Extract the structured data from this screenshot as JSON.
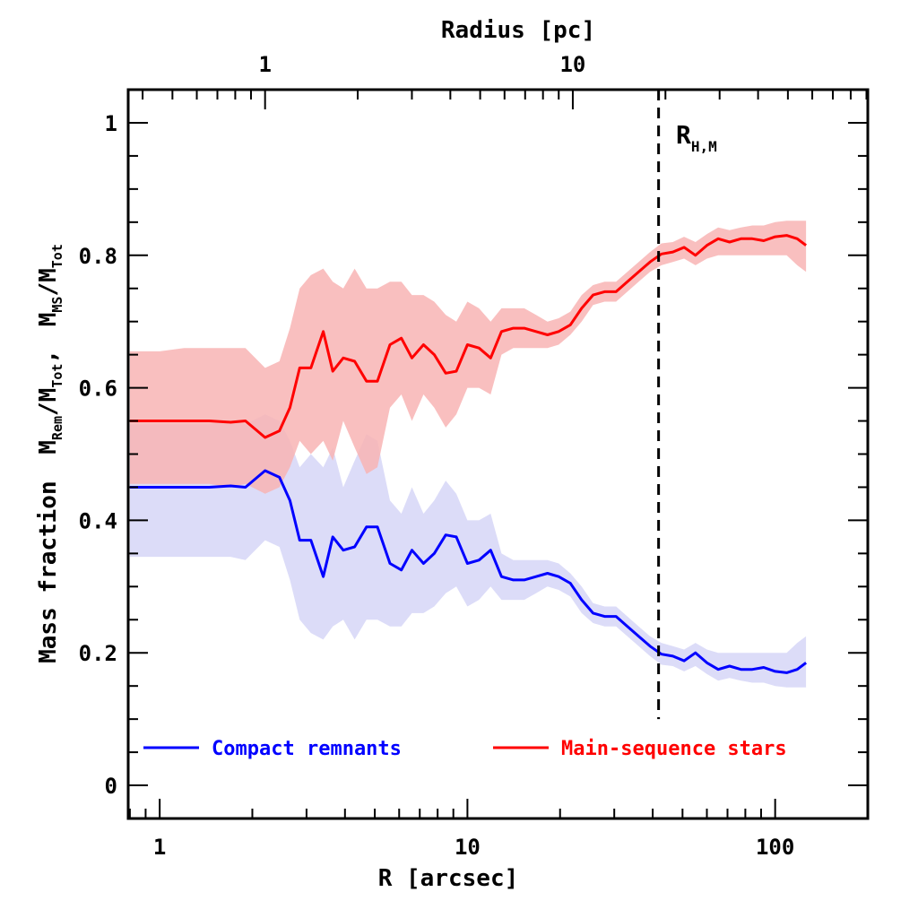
{
  "chart_data": {
    "type": "line",
    "xscale": "log",
    "xlabel": "R [arcsec]",
    "ylabel_parts": {
      "prefix": "Mass fraction",
      "num1_main": "M",
      "num1_sub": "Rem",
      "den1_main": "M",
      "den1_sub": "Tot",
      "sep": ",",
      "num2_main": "M",
      "num2_sub": "MS",
      "den2_main": "M",
      "den2_sub": "Tot"
    },
    "top_xlabel": "Radius [pc]",
    "xlim": [
      0.79,
      200
    ],
    "ylim": [
      -0.05,
      1.05
    ],
    "x_ticks": [
      1,
      10,
      100
    ],
    "x_tick_labels": [
      "1",
      "10",
      "100"
    ],
    "y_ticks": [
      0,
      0.2,
      0.4,
      0.6,
      0.8,
      1
    ],
    "y_tick_labels": [
      "0",
      "0.2",
      "0.4",
      "0.6",
      "0.8",
      "1"
    ],
    "top_ticks_arcsec": [
      2.2,
      22
    ],
    "top_tick_labels": [
      "1",
      "10"
    ],
    "half_mass_radius": {
      "x": 41.8,
      "label_main": "R",
      "label_sub": "H,M"
    },
    "colors": {
      "remnants": "#0000ff",
      "stars": "#ff0000",
      "remnants_band": "#dcdcf8",
      "stars_band": "#f8b4b4"
    },
    "series": [
      {
        "name": "Compact remnants",
        "color": "#0000ff",
        "x": [
          0.8,
          1.0,
          1.2,
          1.45,
          1.7,
          1.9,
          2.2,
          2.45,
          2.65,
          2.85,
          3.1,
          3.4,
          3.65,
          3.95,
          4.3,
          4.7,
          5.1,
          5.6,
          6.1,
          6.6,
          7.2,
          7.8,
          8.5,
          9.2,
          10.0,
          10.9,
          11.9,
          12.9,
          14.1,
          15.3,
          16.7,
          18.2,
          19.8,
          21.6,
          23.5,
          25.6,
          27.9,
          30.4,
          33.1,
          36.0,
          39.2,
          42.7,
          46.5,
          50.6,
          55.1,
          60.0,
          65.3,
          71.1,
          77.4,
          84.3,
          91.8,
          100.0,
          109.0,
          118.0,
          126.0
        ],
        "values": [
          0.45,
          0.45,
          0.45,
          0.45,
          0.452,
          0.45,
          0.475,
          0.465,
          0.43,
          0.37,
          0.37,
          0.315,
          0.375,
          0.355,
          0.36,
          0.39,
          0.39,
          0.335,
          0.325,
          0.355,
          0.335,
          0.35,
          0.378,
          0.375,
          0.335,
          0.34,
          0.355,
          0.315,
          0.31,
          0.31,
          0.315,
          0.32,
          0.315,
          0.305,
          0.28,
          0.26,
          0.255,
          0.255,
          0.24,
          0.225,
          0.21,
          0.198,
          0.195,
          0.188,
          0.2,
          0.185,
          0.175,
          0.18,
          0.175,
          0.175,
          0.178,
          0.172,
          0.17,
          0.175,
          0.185
        ],
        "upper": [
          0.545,
          0.545,
          0.545,
          0.545,
          0.55,
          0.545,
          0.56,
          0.55,
          0.52,
          0.48,
          0.5,
          0.48,
          0.51,
          0.45,
          0.49,
          0.53,
          0.52,
          0.43,
          0.41,
          0.45,
          0.41,
          0.43,
          0.46,
          0.44,
          0.4,
          0.4,
          0.41,
          0.35,
          0.34,
          0.34,
          0.34,
          0.34,
          0.335,
          0.32,
          0.3,
          0.275,
          0.27,
          0.27,
          0.255,
          0.24,
          0.225,
          0.215,
          0.21,
          0.205,
          0.215,
          0.205,
          0.2,
          0.2,
          0.2,
          0.2,
          0.2,
          0.2,
          0.2,
          0.215,
          0.225
        ],
        "lower": [
          0.345,
          0.345,
          0.345,
          0.345,
          0.345,
          0.34,
          0.37,
          0.36,
          0.31,
          0.25,
          0.23,
          0.22,
          0.24,
          0.25,
          0.22,
          0.25,
          0.25,
          0.24,
          0.24,
          0.26,
          0.26,
          0.27,
          0.29,
          0.3,
          0.27,
          0.28,
          0.3,
          0.28,
          0.28,
          0.28,
          0.29,
          0.3,
          0.295,
          0.285,
          0.26,
          0.245,
          0.24,
          0.24,
          0.225,
          0.21,
          0.195,
          0.182,
          0.18,
          0.172,
          0.18,
          0.168,
          0.158,
          0.162,
          0.158,
          0.155,
          0.155,
          0.15,
          0.148,
          0.148,
          0.148
        ]
      },
      {
        "name": "Main-sequence stars",
        "color": "#ff0000",
        "x": [
          0.8,
          1.0,
          1.2,
          1.45,
          1.7,
          1.9,
          2.2,
          2.45,
          2.65,
          2.85,
          3.1,
          3.4,
          3.65,
          3.95,
          4.3,
          4.7,
          5.1,
          5.6,
          6.1,
          6.6,
          7.2,
          7.8,
          8.5,
          9.2,
          10.0,
          10.9,
          11.9,
          12.9,
          14.1,
          15.3,
          16.7,
          18.2,
          19.8,
          21.6,
          23.5,
          25.6,
          27.9,
          30.4,
          33.1,
          36.0,
          39.2,
          42.7,
          46.5,
          50.6,
          55.1,
          60.0,
          65.3,
          71.1,
          77.4,
          84.3,
          91.8,
          100.0,
          109.0,
          118.0,
          126.0
        ],
        "values": [
          0.55,
          0.55,
          0.55,
          0.55,
          0.548,
          0.55,
          0.525,
          0.535,
          0.57,
          0.63,
          0.63,
          0.685,
          0.625,
          0.645,
          0.64,
          0.61,
          0.61,
          0.665,
          0.675,
          0.645,
          0.665,
          0.65,
          0.622,
          0.625,
          0.665,
          0.66,
          0.645,
          0.685,
          0.69,
          0.69,
          0.685,
          0.68,
          0.685,
          0.695,
          0.72,
          0.74,
          0.745,
          0.745,
          0.76,
          0.775,
          0.79,
          0.802,
          0.805,
          0.812,
          0.8,
          0.815,
          0.825,
          0.82,
          0.825,
          0.825,
          0.822,
          0.828,
          0.83,
          0.825,
          0.815
        ],
        "upper": [
          0.655,
          0.655,
          0.66,
          0.66,
          0.66,
          0.66,
          0.63,
          0.64,
          0.69,
          0.75,
          0.77,
          0.78,
          0.76,
          0.75,
          0.78,
          0.75,
          0.75,
          0.76,
          0.76,
          0.74,
          0.74,
          0.73,
          0.71,
          0.7,
          0.73,
          0.72,
          0.7,
          0.72,
          0.72,
          0.72,
          0.71,
          0.7,
          0.705,
          0.715,
          0.74,
          0.755,
          0.76,
          0.76,
          0.775,
          0.79,
          0.805,
          0.818,
          0.82,
          0.828,
          0.82,
          0.832,
          0.842,
          0.838,
          0.842,
          0.845,
          0.845,
          0.85,
          0.852,
          0.852,
          0.852
        ],
        "lower": [
          0.455,
          0.455,
          0.455,
          0.455,
          0.45,
          0.455,
          0.44,
          0.45,
          0.48,
          0.52,
          0.5,
          0.52,
          0.49,
          0.55,
          0.51,
          0.47,
          0.48,
          0.57,
          0.59,
          0.55,
          0.59,
          0.57,
          0.54,
          0.56,
          0.6,
          0.6,
          0.59,
          0.65,
          0.66,
          0.66,
          0.66,
          0.66,
          0.665,
          0.68,
          0.7,
          0.725,
          0.73,
          0.73,
          0.745,
          0.76,
          0.775,
          0.785,
          0.79,
          0.795,
          0.785,
          0.795,
          0.8,
          0.8,
          0.8,
          0.8,
          0.8,
          0.8,
          0.8,
          0.785,
          0.775
        ]
      }
    ],
    "legend": [
      {
        "label": "Compact remnants",
        "color": "#0000ff"
      },
      {
        "label": "Main-sequence stars",
        "color": "#ff0000"
      }
    ],
    "legend_position": "bottom"
  }
}
